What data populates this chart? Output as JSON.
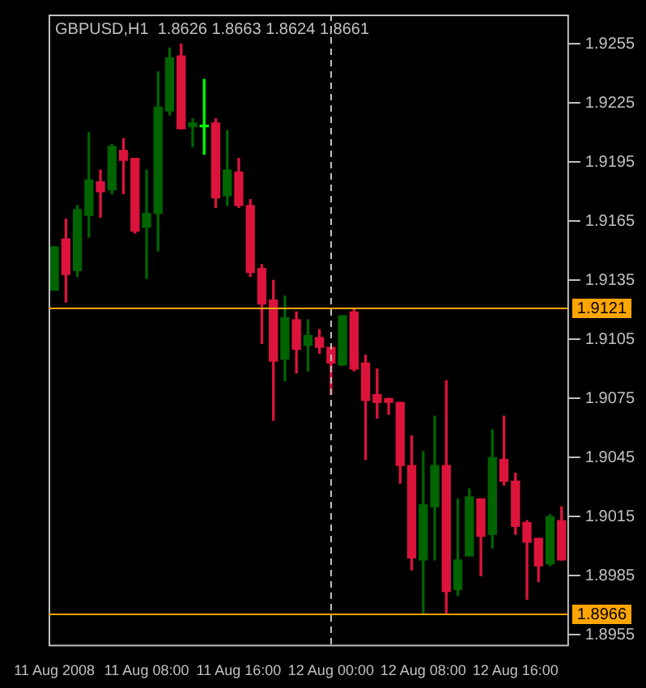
{
  "chart_data": {
    "type": "candlestick",
    "title": "GBPUSD,H1  1.8626 1.8663 1.8624 1.8661",
    "categories": [
      "11 Aug 2008",
      null,
      null,
      null,
      null,
      null,
      null,
      null,
      "11 Aug 08:00",
      null,
      null,
      null,
      null,
      null,
      null,
      null,
      "11 Aug 16:00",
      null,
      null,
      null,
      null,
      null,
      null,
      null,
      "12 Aug 00:00",
      null,
      null,
      null,
      null,
      null,
      null,
      null,
      "12 Aug 08:00",
      null,
      null,
      null,
      null,
      null,
      null,
      null,
      "12 Aug 16:00",
      null,
      null,
      null,
      null
    ],
    "ohlc": [
      [
        1.913,
        1.9152,
        1.913,
        1.9152
      ],
      [
        1.9156,
        1.9166,
        1.9124,
        1.9138
      ],
      [
        1.914,
        1.9173,
        1.9137,
        1.9171
      ],
      [
        1.9168,
        1.921,
        1.9157,
        1.9186
      ],
      [
        1.9185,
        1.9191,
        1.9167,
        1.918
      ],
      [
        1.9181,
        1.9204,
        1.9179,
        1.9203
      ],
      [
        1.9201,
        1.9207,
        1.9179,
        1.9196
      ],
      [
        1.9197,
        1.9197,
        1.9159,
        1.916
      ],
      [
        1.9162,
        1.9191,
        1.9136,
        1.9169
      ],
      [
        1.9169,
        1.9241,
        1.915,
        1.9223
      ],
      [
        1.9221,
        1.9253,
        1.9219,
        1.9248
      ],
      [
        1.9249,
        1.9255,
        1.9212,
        1.9212
      ],
      [
        1.9213,
        1.9217,
        1.9203,
        1.9215
      ],
      [
        1.9213,
        1.9237,
        1.9199,
        1.9213
      ],
      [
        1.9215,
        1.9217,
        1.9172,
        1.9177
      ],
      [
        1.9178,
        1.9211,
        1.9173,
        1.9191
      ],
      [
        1.919,
        1.9197,
        1.9172,
        1.9173
      ],
      [
        1.9173,
        1.9176,
        1.9137,
        1.9139
      ],
      [
        1.9141,
        1.9143,
        1.9103,
        1.9123
      ],
      [
        1.9125,
        1.9135,
        1.9064,
        1.9094
      ],
      [
        1.9095,
        1.9127,
        1.9084,
        1.9116
      ],
      [
        1.9115,
        1.9119,
        1.9088,
        1.91
      ],
      [
        1.9102,
        1.9115,
        1.9089,
        1.9107
      ],
      [
        1.9106,
        1.911,
        1.9098,
        1.9101
      ],
      [
        1.9101,
        1.9101,
        1.9077,
        1.9093
      ],
      [
        1.9092,
        1.9117,
        1.9092,
        1.9117
      ],
      [
        1.9119,
        1.9121,
        1.9089,
        1.909
      ],
      [
        1.9093,
        1.9097,
        1.9044,
        1.9074
      ],
      [
        1.9077,
        1.909,
        1.9065,
        1.9073
      ],
      [
        1.9075,
        1.9075,
        1.9067,
        1.9073
      ],
      [
        1.9073,
        1.9073,
        1.9032,
        1.9041
      ],
      [
        1.9041,
        1.9056,
        1.8988,
        1.8994
      ],
      [
        1.8993,
        1.9048,
        1.8966,
        1.9021
      ],
      [
        1.902,
        1.9066,
        1.8993,
        1.9041
      ],
      [
        1.9041,
        1.9084,
        1.8966,
        1.8977
      ],
      [
        1.8978,
        1.9024,
        1.8975,
        1.8993
      ],
      [
        1.8995,
        1.9029,
        1.8995,
        1.9025
      ],
      [
        1.9024,
        1.9024,
        1.8985,
        1.9005
      ],
      [
        1.9006,
        1.9059,
        1.8999,
        1.9045
      ],
      [
        1.9044,
        1.9066,
        1.9031,
        1.9033
      ],
      [
        1.9033,
        1.9037,
        1.9006,
        1.901
      ],
      [
        1.9012,
        1.9013,
        1.8973,
        1.9002
      ],
      [
        1.9004,
        1.9004,
        1.8982,
        1.899
      ],
      [
        1.8991,
        1.9016,
        1.899,
        1.9015
      ],
      [
        1.9013,
        1.902,
        1.8993,
        1.8993
      ]
    ],
    "colors": [
      "#006400",
      "#dc143c",
      "#006400",
      "#006400",
      "#dc143c",
      "#006400",
      "#dc143c",
      "#dc143c",
      "#006400",
      "#006400",
      "#006400",
      "#dc143c",
      "#006400",
      "#00ff00",
      "#dc143c",
      "#006400",
      "#dc143c",
      "#dc143c",
      "#dc143c",
      "#dc143c",
      "#006400",
      "#dc143c",
      "#006400",
      "#dc143c",
      "#dc143c",
      "#006400",
      "#dc143c",
      "#dc143c",
      "#dc143c",
      "#dc143c",
      "#dc143c",
      "#dc143c",
      "#006400",
      "#006400",
      "#dc143c",
      "#006400",
      "#006400",
      "#dc143c",
      "#006400",
      "#dc143c",
      "#dc143c",
      "#dc143c",
      "#dc143c",
      "#006400",
      "#dc143c"
    ],
    "ylim": [
      1.895,
      1.927
    ],
    "yticks": [
      1.8955,
      1.8985,
      1.9015,
      1.9045,
      1.9075,
      1.9105,
      1.9135,
      1.9165,
      1.9195,
      1.9225,
      1.9255
    ],
    "ref_lines": [
      {
        "axis": "y",
        "value": 1.9121,
        "label": "1.9121",
        "color": "#ffa500"
      },
      {
        "axis": "y",
        "value": 1.8966,
        "label": "1.8966",
        "color": "#ffa500"
      },
      {
        "axis": "x",
        "value": "12 Aug 00:00",
        "color": "#c0c0c0",
        "line_style": "dashed"
      }
    ],
    "grid": false,
    "legend": false
  }
}
